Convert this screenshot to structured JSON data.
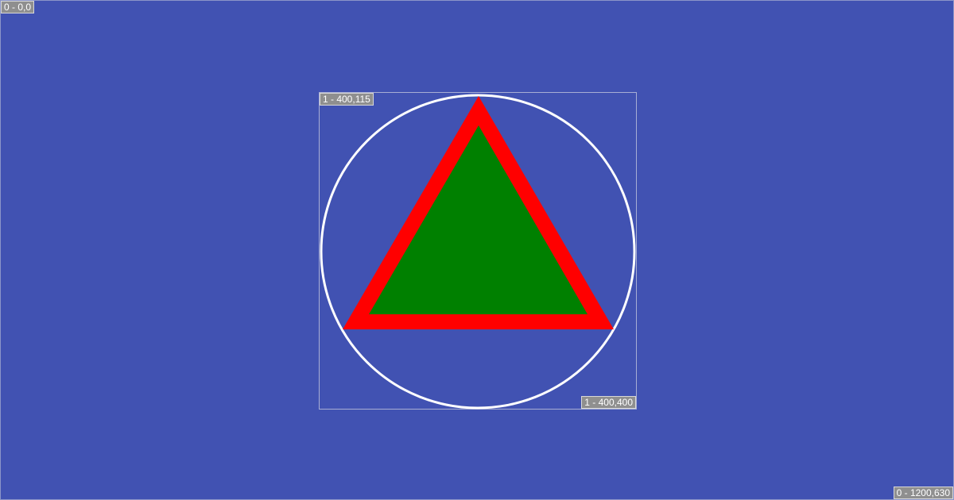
{
  "canvas": {
    "background_color": "#4152b2",
    "origin_label": "0 - 0,0",
    "extent_label": "0 - 1200,630"
  },
  "layer": {
    "origin_label": "1 - 400,115",
    "extent_label": "1 - 400,400"
  },
  "shapes": {
    "circle": {
      "stroke_color": "#ffffff",
      "fill": "none"
    },
    "triangle": {
      "stroke_color": "#ff0000",
      "fill_color": "#008000"
    }
  }
}
